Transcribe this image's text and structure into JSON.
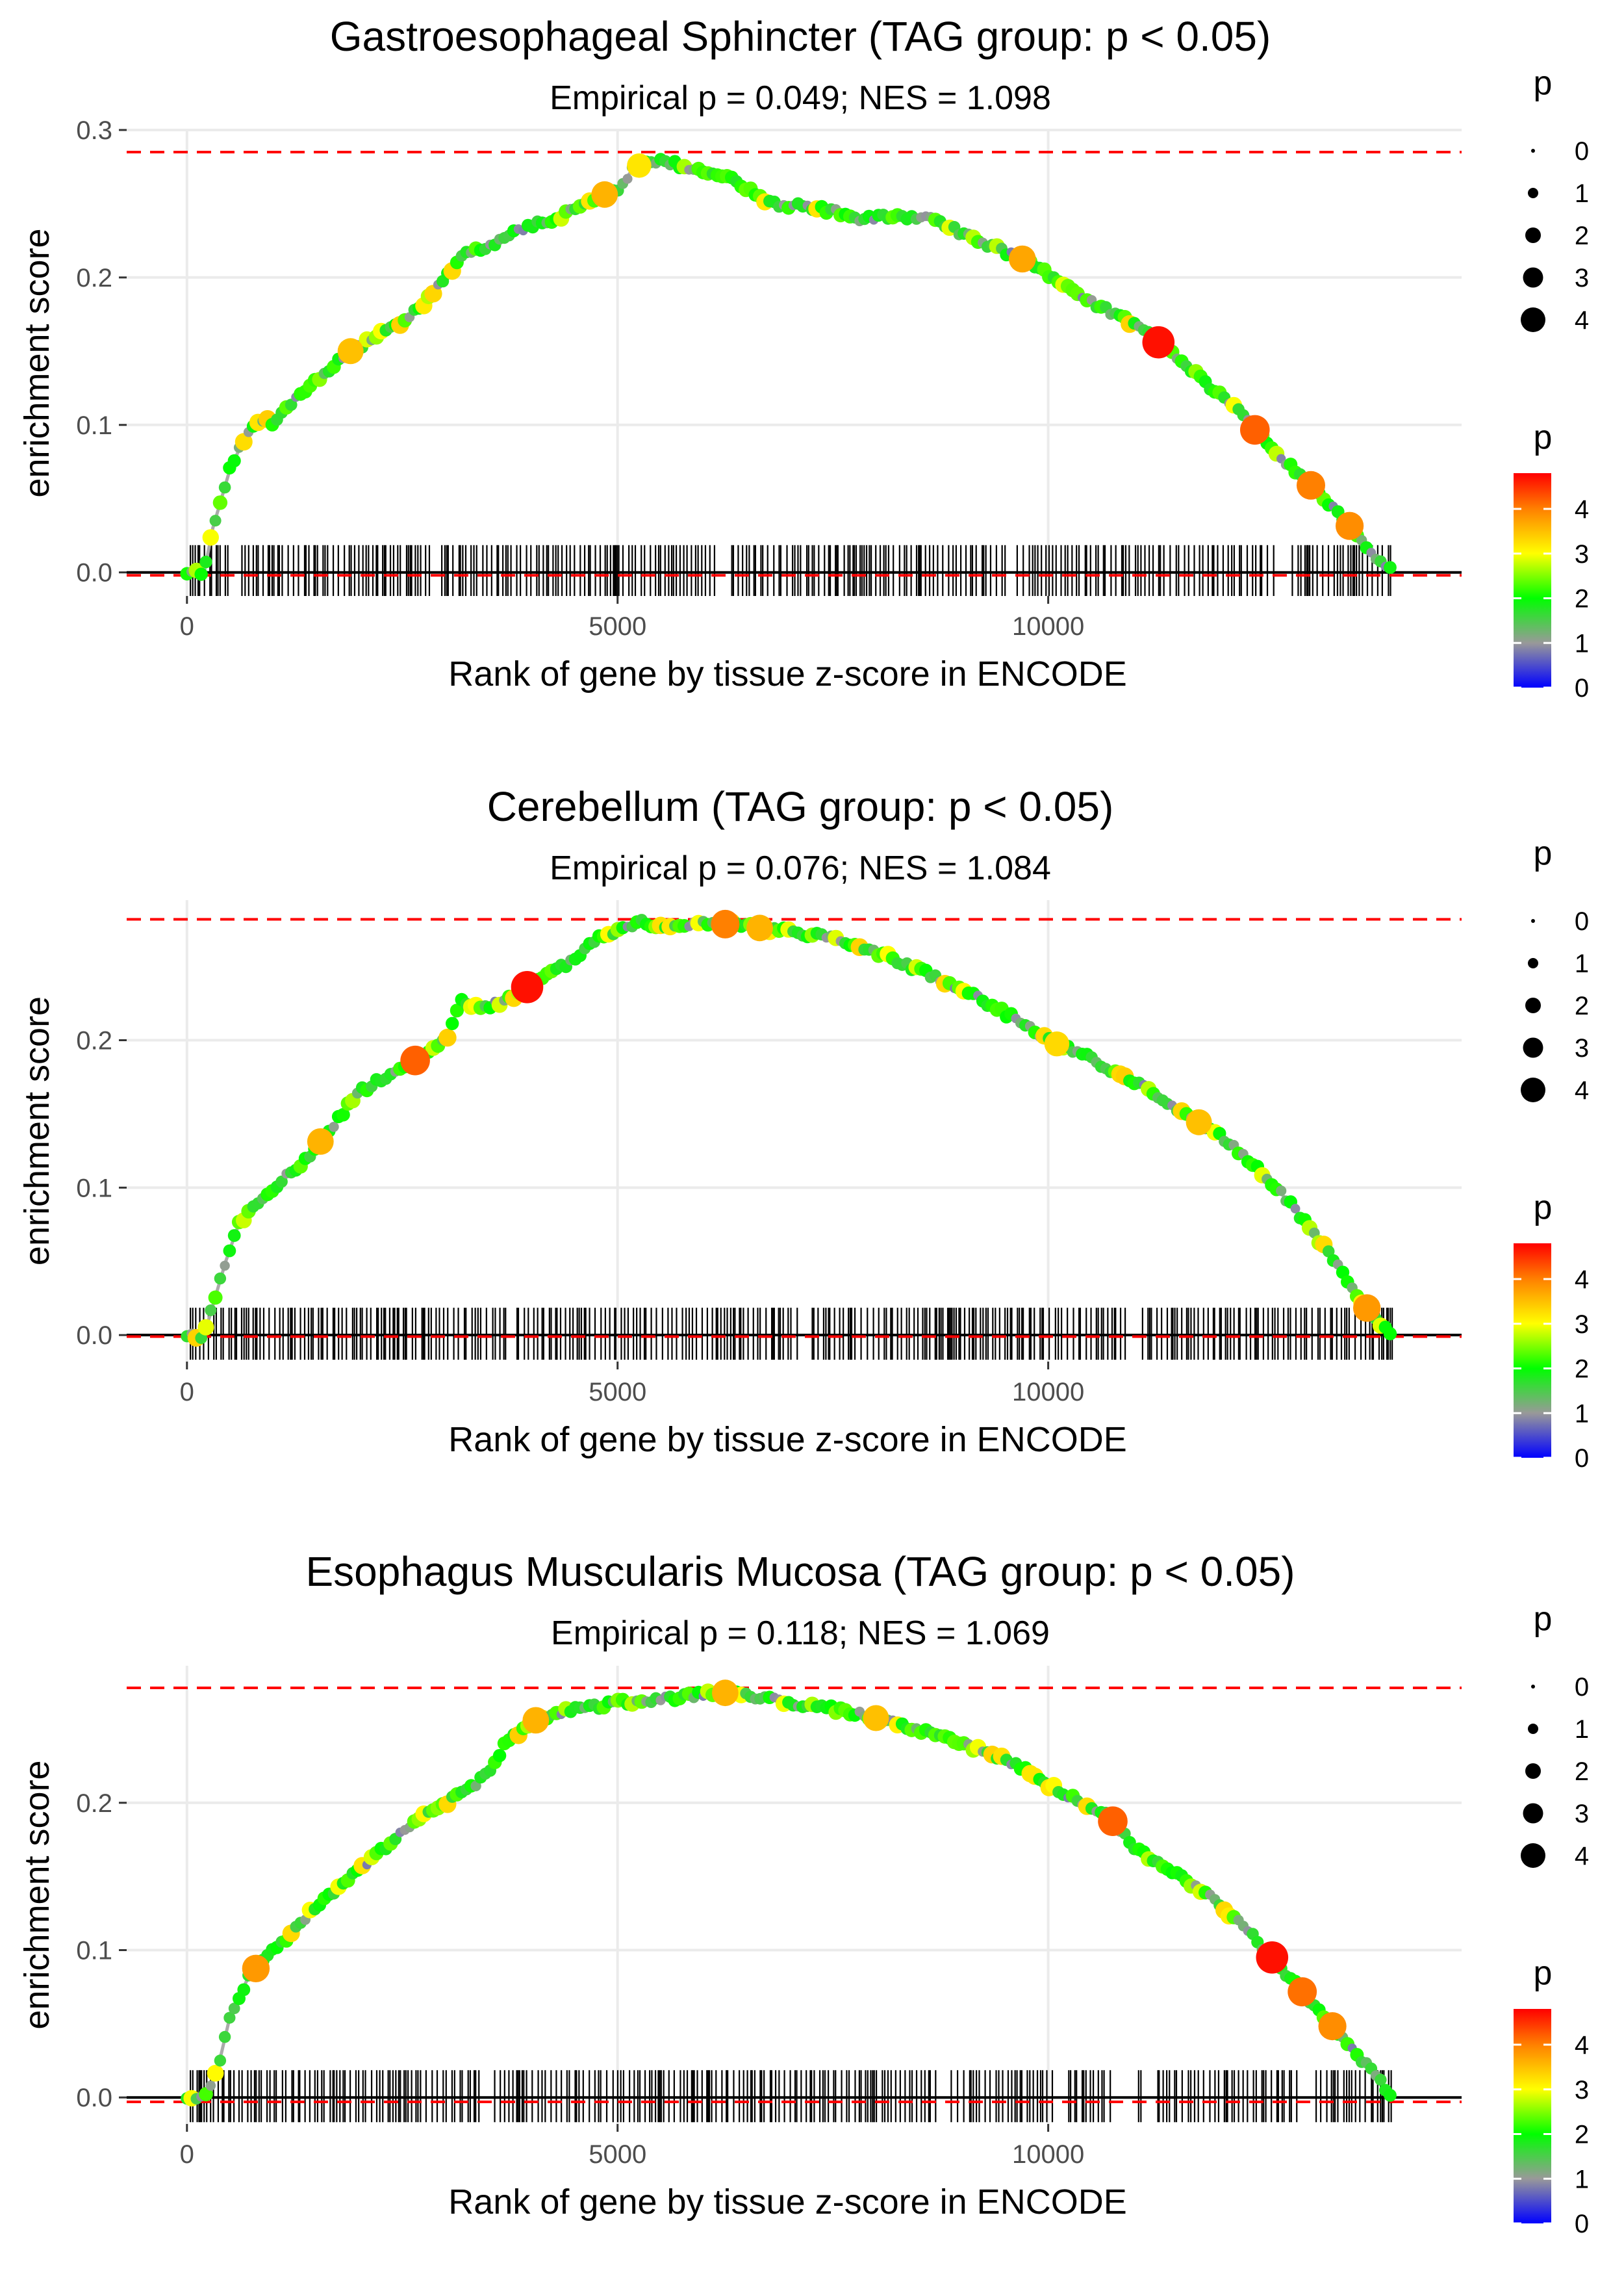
{
  "legend_size": {
    "title": "p",
    "labels": [
      "0",
      "1",
      "2",
      "3",
      "4"
    ]
  },
  "legend_color": {
    "title": "p",
    "labels": [
      "4",
      "3",
      "2",
      "1",
      "0"
    ],
    "color_stops": [
      {
        "p": 0,
        "color": "#0000ff"
      },
      {
        "p": 1,
        "color": "#999999"
      },
      {
        "p": 2,
        "color": "#00ff00"
      },
      {
        "p": 3,
        "color": "#ffff00"
      },
      {
        "p": 4,
        "color": "#ff8000"
      },
      {
        "p": 4.8,
        "color": "#ff0000"
      }
    ]
  },
  "colors": {
    "grid": "#ebebeb",
    "curve": "#aaaaaa",
    "reference_line": "#ff0000",
    "axis_line": "#000000"
  },
  "chart_data": [
    {
      "type": "line",
      "title": "Gastroesophageal Sphincter (TAG group: p < 0.05)",
      "subtitle": "Empirical p = 0.049; NES = 1.098",
      "xlabel": "Rank of gene by tissue z-score in ENCODE",
      "ylabel": "enrichment score",
      "xlim": [
        -700,
        14800
      ],
      "ylim": [
        -0.016,
        0.3
      ],
      "x_ticks": [
        0,
        5000,
        10000
      ],
      "x_tick_labels": [
        "0",
        "5000",
        "10000"
      ],
      "y_ticks": [
        0,
        0.1,
        0.2,
        0.3
      ],
      "y_tick_labels": [
        "0.0",
        "0.1",
        "0.2",
        "0.3"
      ],
      "max_es": 0.285,
      "min_es": -0.002,
      "n_genes": 14000,
      "rug_seed": 11,
      "rug_gaps": [
        [
          500,
          620
        ],
        [
          2820,
          2950
        ],
        [
          6150,
          6320
        ],
        [
          9500,
          9640
        ],
        [
          12650,
          12800
        ]
      ],
      "series": [
        {
          "name": "running enrichment score",
          "x": [
            0,
            200,
            300,
            500,
            700,
            850,
            1000,
            1300,
            1500,
            1700,
            1900,
            2200,
            2500,
            2800,
            3000,
            3200,
            3500,
            3800,
            4000,
            4300,
            4600,
            4800,
            5000,
            5200,
            5500,
            5800,
            6200,
            6500,
            6800,
            7200,
            7500,
            7800,
            8200,
            8600,
            9000,
            9400,
            9800,
            10200,
            10600,
            11000,
            11200,
            11500,
            11800,
            12200,
            12500,
            12800,
            13000,
            13200,
            13400,
            13600,
            13800,
            14000
          ],
          "y": [
            0.0,
            0.0,
            0.03,
            0.07,
            0.095,
            0.105,
            0.1,
            0.12,
            0.13,
            0.14,
            0.15,
            0.16,
            0.17,
            0.185,
            0.2,
            0.215,
            0.22,
            0.23,
            0.235,
            0.24,
            0.25,
            0.255,
            0.26,
            0.275,
            0.28,
            0.275,
            0.27,
            0.26,
            0.25,
            0.248,
            0.245,
            0.24,
            0.242,
            0.24,
            0.23,
            0.22,
            0.21,
            0.195,
            0.18,
            0.168,
            0.16,
            0.145,
            0.13,
            0.11,
            0.09,
            0.072,
            0.062,
            0.05,
            0.038,
            0.025,
            0.01,
            0.0
          ]
        }
      ],
      "highlighted_points": [
        {
          "x": 11280,
          "p": 4.7
        },
        {
          "x": 5250,
          "p": 3.2
        },
        {
          "x": 12400,
          "p": 4.2
        },
        {
          "x": 13050,
          "p": 4.0
        },
        {
          "x": 13500,
          "p": 3.9
        },
        {
          "x": 4850,
          "p": 3.6
        },
        {
          "x": 9700,
          "p": 3.7
        },
        {
          "x": 1900,
          "p": 3.5
        }
      ]
    },
    {
      "type": "line",
      "title": "Cerebellum (TAG group: p < 0.05)",
      "subtitle": "Empirical p = 0.076; NES = 1.084",
      "xlabel": "Rank of gene by tissue z-score in ENCODE",
      "ylabel": "enrichment score",
      "xlim": [
        -700,
        14800
      ],
      "ylim": [
        -0.018,
        0.295
      ],
      "x_ticks": [
        0,
        5000,
        10000
      ],
      "x_tick_labels": [
        "0",
        "5000",
        "10000"
      ],
      "y_ticks": [
        0,
        0.1,
        0.2
      ],
      "y_tick_labels": [
        "0.0",
        "0.1",
        "0.2"
      ],
      "max_es": 0.282,
      "min_es": -0.001,
      "n_genes": 14000,
      "rug_seed": 23,
      "rug_gaps": [
        [
          3700,
          3800
        ],
        [
          7100,
          7250
        ],
        [
          10900,
          11050
        ]
      ],
      "series": [
        {
          "name": "running enrichment score",
          "x": [
            0,
            200,
            300,
            450,
            600,
            800,
            1000,
            1200,
            1400,
            1600,
            1800,
            2000,
            2300,
            2600,
            2800,
            3000,
            3200,
            3400,
            3600,
            3800,
            4000,
            4200,
            4500,
            4800,
            5000,
            5300,
            5600,
            6000,
            6400,
            6800,
            7200,
            7600,
            8000,
            8400,
            8800,
            9200,
            9600,
            10000,
            10400,
            10800,
            11200,
            11600,
            12000,
            12400,
            12800,
            13200,
            13500,
            13800,
            14000
          ],
          "y": [
            0.0,
            0.0,
            0.02,
            0.05,
            0.075,
            0.09,
            0.1,
            0.11,
            0.12,
            0.135,
            0.15,
            0.165,
            0.175,
            0.185,
            0.19,
            0.2,
            0.228,
            0.22,
            0.225,
            0.23,
            0.238,
            0.245,
            0.255,
            0.27,
            0.275,
            0.28,
            0.275,
            0.28,
            0.278,
            0.275,
            0.272,
            0.268,
            0.26,
            0.25,
            0.24,
            0.228,
            0.215,
            0.2,
            0.19,
            0.178,
            0.165,
            0.15,
            0.135,
            0.115,
            0.09,
            0.06,
            0.035,
            0.01,
            0.0
          ]
        }
      ],
      "highlighted_points": [
        {
          "x": 3950,
          "p": 4.7
        },
        {
          "x": 2650,
          "p": 4.2
        },
        {
          "x": 6250,
          "p": 4.0
        },
        {
          "x": 6650,
          "p": 3.6
        },
        {
          "x": 1550,
          "p": 3.6
        },
        {
          "x": 11750,
          "p": 3.5
        },
        {
          "x": 13700,
          "p": 3.8
        },
        {
          "x": 10100,
          "p": 3.3
        }
      ]
    },
    {
      "type": "line",
      "title": "Esophagus Muscularis Mucosa (TAG group: p < 0.05)",
      "subtitle": "Empirical p = 0.118; NES = 1.069",
      "xlabel": "Rank of gene by tissue z-score in ENCODE",
      "ylabel": "enrichment score",
      "xlim": [
        -700,
        14800
      ],
      "ylim": [
        -0.018,
        0.293
      ],
      "x_ticks": [
        0,
        5000,
        10000
      ],
      "x_tick_labels": [
        "0",
        "5000",
        "10000"
      ],
      "y_ticks": [
        0,
        0.1,
        0.2
      ],
      "y_tick_labels": [
        "0.0",
        "0.1",
        "0.2"
      ],
      "max_es": 0.278,
      "min_es": -0.003,
      "n_genes": 14000,
      "rug_seed": 37,
      "rug_gaps": [
        [
          3400,
          3560
        ],
        [
          8700,
          8850
        ],
        [
          10050,
          10200
        ],
        [
          10750,
          11000
        ],
        [
          11100,
          11250
        ],
        [
          12900,
          13050
        ]
      ],
      "series": [
        {
          "name": "running enrichment score",
          "x": [
            0,
            200,
            300,
            400,
            500,
            700,
            900,
            1200,
            1500,
            1800,
            2100,
            2400,
            2700,
            3000,
            3300,
            3500,
            3700,
            3900,
            4100,
            4400,
            4700,
            5000,
            5400,
            5800,
            6200,
            6600,
            7000,
            7400,
            7800,
            8200,
            8600,
            9000,
            9400,
            9800,
            10200,
            10600,
            10800,
            11000,
            11400,
            11800,
            12200,
            12600,
            12900,
            13200,
            13500,
            13800,
            14000
          ],
          "y": [
            0.0,
            0.0,
            0.01,
            0.03,
            0.055,
            0.08,
            0.095,
            0.11,
            0.13,
            0.145,
            0.16,
            0.175,
            0.19,
            0.2,
            0.21,
            0.22,
            0.24,
            0.25,
            0.258,
            0.262,
            0.265,
            0.268,
            0.27,
            0.272,
            0.275,
            0.272,
            0.268,
            0.265,
            0.26,
            0.255,
            0.248,
            0.24,
            0.232,
            0.22,
            0.205,
            0.195,
            0.185,
            0.17,
            0.155,
            0.14,
            0.12,
            0.095,
            0.075,
            0.055,
            0.035,
            0.015,
            0.0
          ]
        }
      ],
      "highlighted_points": [
        {
          "x": 12600,
          "p": 4.7
        },
        {
          "x": 10750,
          "p": 4.2
        },
        {
          "x": 12950,
          "p": 4.1
        },
        {
          "x": 13300,
          "p": 3.9
        },
        {
          "x": 6250,
          "p": 3.6
        },
        {
          "x": 4050,
          "p": 3.6
        },
        {
          "x": 800,
          "p": 3.8
        },
        {
          "x": 8000,
          "p": 3.5
        }
      ]
    }
  ]
}
